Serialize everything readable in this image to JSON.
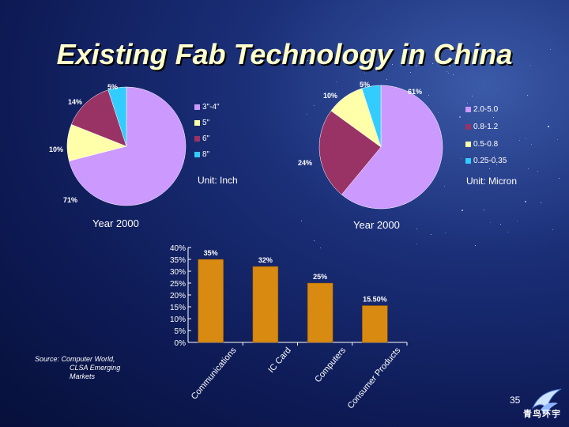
{
  "title": "Existing Fab Technology in China",
  "colors": {
    "lavender": "#cc99ff",
    "maroon": "#993366",
    "cream": "#ffffaa",
    "cyan": "#33ccff",
    "bar": "#d98a10"
  },
  "chart_data": [
    {
      "type": "pie",
      "year_label": "Year 2000",
      "unit_label": "Unit: Inch",
      "legend": [
        "3\"-4\"",
        "5\"",
        "6\"",
        "8\""
      ],
      "slices": [
        {
          "label": "3\"-4\"",
          "value": 71,
          "display": "71%"
        },
        {
          "label": "5\"",
          "value": 10,
          "display": "10%"
        },
        {
          "label": "6\"",
          "value": 14,
          "display": "14%"
        },
        {
          "label": "8\"",
          "value": 5,
          "display": "5%"
        }
      ]
    },
    {
      "type": "pie",
      "year_label": "Year 2000",
      "unit_label": "Unit: Micron",
      "legend": [
        "2.0-5.0",
        "0.8-1.2",
        "0.5-0.8",
        "0.25-0.35"
      ],
      "slices": [
        {
          "label": "2.0-5.0",
          "value": 61,
          "display": "61%"
        },
        {
          "label": "0.8-1.2",
          "value": 24,
          "display": "24%"
        },
        {
          "label": "0.5-0.8",
          "value": 10,
          "display": "10%"
        },
        {
          "label": "0.25-0.35",
          "value": 5,
          "display": "5%"
        }
      ]
    },
    {
      "type": "bar",
      "categories": [
        "Communications",
        "IC Card",
        "Computers",
        "Consumer Products"
      ],
      "values": [
        35,
        32,
        25,
        15.5
      ],
      "value_labels": [
        "35%",
        "32%",
        "25%",
        "15.50%"
      ],
      "ylim": [
        0,
        40
      ],
      "yticks": [
        "0%",
        "5%",
        "10%",
        "15%",
        "20%",
        "25%",
        "30%",
        "35%",
        "40%"
      ]
    }
  ],
  "source": [
    "Source: Computer World,",
    "CLSA Emerging",
    "Markets"
  ],
  "page_number": "35",
  "logo_text": "青鸟环宇"
}
